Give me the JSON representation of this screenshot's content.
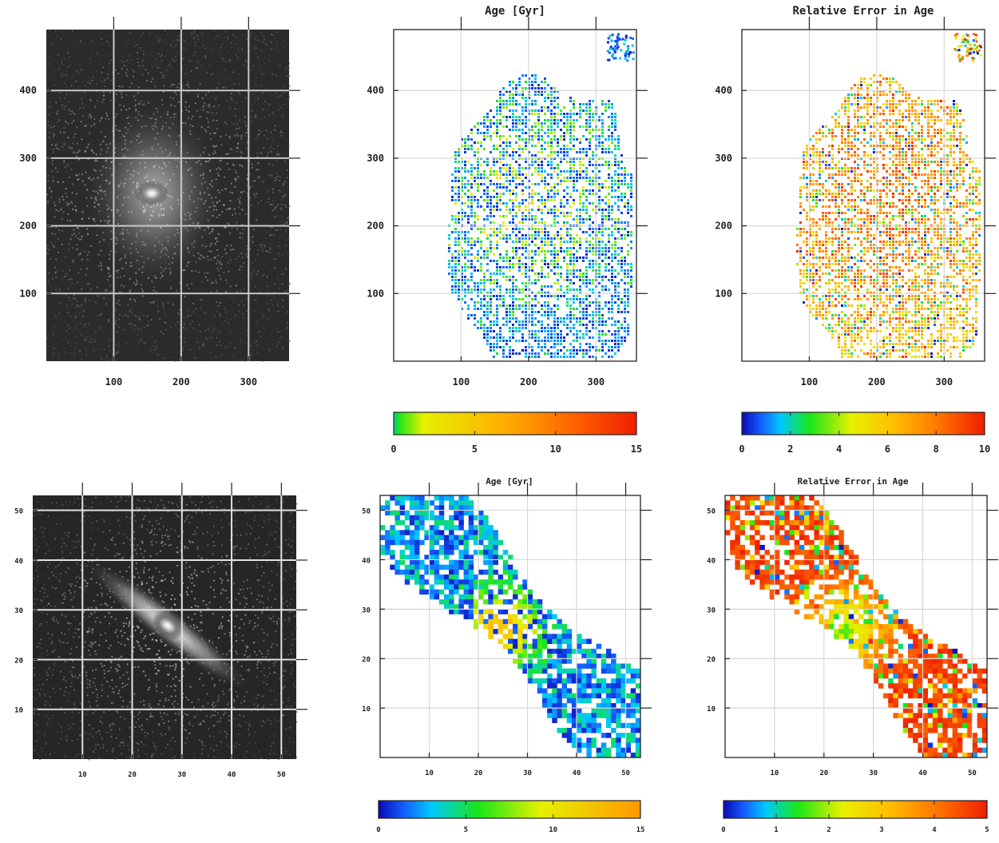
{
  "colors": {
    "grid_dark": "#c8c8c8",
    "grid_light": "#d8d8d8",
    "image_background": "#2b2b2b",
    "frame": "#222222"
  },
  "chart_data": [
    {
      "id": "top_image",
      "type": "heatmap",
      "description_kind": "grayscale image",
      "title": "",
      "xlim": [
        0,
        360
      ],
      "ylim": [
        0,
        490
      ],
      "x_ticks": [
        "100",
        "200",
        "300"
      ],
      "y_ticks": [
        "100",
        "200",
        "300",
        "400"
      ],
      "grid": true,
      "source": {
        "x": 160,
        "y": 245,
        "sx": 14,
        "sy": 14,
        "shape": "spiral galaxy with bright core"
      }
    },
    {
      "id": "top_age",
      "type": "heatmap",
      "title": "Age [Gyr]",
      "xlim": [
        0,
        360
      ],
      "ylim": [
        0,
        490
      ],
      "x_ticks": [
        "100",
        "200",
        "300"
      ],
      "y_ticks": [
        "100",
        "200",
        "300",
        "400"
      ],
      "grid": true,
      "colorbar": {
        "ticks": [
          "0",
          "5",
          "10",
          "15"
        ],
        "range": [
          0,
          15
        ],
        "colormap": "rainbow"
      }
    },
    {
      "id": "top_err",
      "type": "heatmap",
      "title": "Relative Error in Age",
      "xlim": [
        0,
        360
      ],
      "ylim": [
        0,
        490
      ],
      "x_ticks": [
        "100",
        "200",
        "300"
      ],
      "y_ticks": [
        "100",
        "200",
        "300",
        "400"
      ],
      "grid": true,
      "colorbar": {
        "ticks": [
          "0",
          "2",
          "4",
          "6",
          "8",
          "10"
        ],
        "range": [
          0,
          10
        ],
        "colormap": "rainbow"
      }
    },
    {
      "id": "bottom_image",
      "type": "heatmap",
      "description_kind": "grayscale image",
      "title": "",
      "xlim": [
        0,
        53
      ],
      "ylim": [
        0,
        53
      ],
      "x_ticks": [
        "10",
        "20",
        "30",
        "40",
        "50"
      ],
      "y_ticks": [
        "10",
        "20",
        "30",
        "40",
        "50"
      ],
      "grid": true,
      "source": {
        "x": 27,
        "y": 26,
        "shape": "elongated galaxy along diagonal"
      }
    },
    {
      "id": "bottom_age",
      "type": "heatmap",
      "title": "Age [Gyr]",
      "xlim": [
        0,
        53
      ],
      "ylim": [
        0,
        53
      ],
      "x_ticks": [
        "10",
        "20",
        "30",
        "40",
        "50"
      ],
      "y_ticks": [
        "10",
        "20",
        "30",
        "40",
        "50"
      ],
      "grid": true,
      "colorbar": {
        "ticks": [
          "0",
          "5",
          "10",
          "15"
        ],
        "range": [
          0,
          15
        ],
        "colormap": "rainbow"
      }
    },
    {
      "id": "bottom_err",
      "type": "heatmap",
      "title": "Relative Error in Age",
      "xlim": [
        0,
        53
      ],
      "ylim": [
        0,
        53
      ],
      "x_ticks": [
        "10",
        "20",
        "30",
        "40",
        "50"
      ],
      "y_ticks": [
        "10",
        "20",
        "30",
        "40",
        "50"
      ],
      "grid": true,
      "colorbar": {
        "ticks": [
          "0",
          "1",
          "2",
          "3",
          "4",
          "5"
        ],
        "range": [
          0,
          5
        ],
        "colormap": "rainbow"
      }
    }
  ]
}
